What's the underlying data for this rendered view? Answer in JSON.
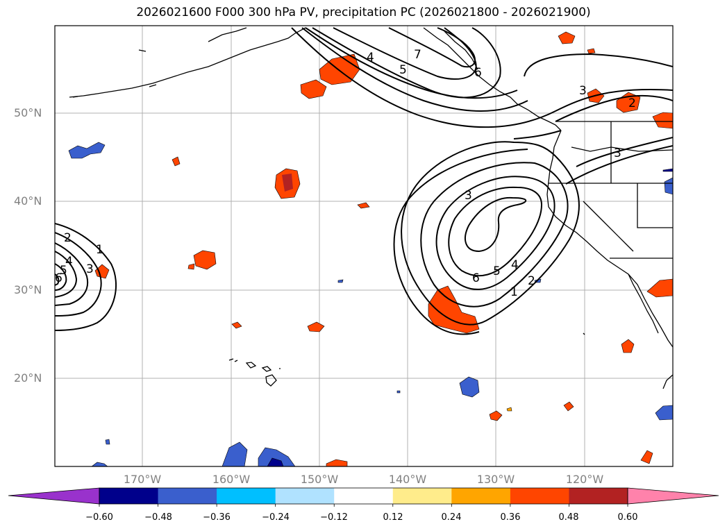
{
  "title": "2026021600 F000 300 hPa PV, precipitation PC (2026021800 - 2026021900)",
  "lat_labels": [
    "50°N",
    "40°N",
    "30°N",
    "20°N"
  ],
  "lon_labels": [
    "170°W",
    "160°W",
    "150°W",
    "140°W",
    "130°W",
    "120°W"
  ],
  "colorbar": {
    "tick_labels": [
      "−0.60",
      "−0.48",
      "−0.36",
      "−0.24",
      "−0.12",
      "0.12",
      "0.24",
      "0.36",
      "0.48",
      "0.60"
    ],
    "colors": [
      "#9932cc",
      "#00008b",
      "#3a5fcd",
      "#00bfff",
      "#b0e2ff",
      "#ffffff",
      "#ffec8b",
      "#ffa500",
      "#ff4500",
      "#b22222",
      "#ff82ab"
    ]
  },
  "contour_labels": {
    "north_4": "4",
    "north_5": "5",
    "north_7": "7",
    "north_6": "6",
    "ne_3": "3",
    "ne_2": "2",
    "east_3": "3",
    "trough_3": "3",
    "trough_4": "4",
    "trough_5": "5",
    "trough_6": "6",
    "trough_2": "2",
    "trough_1": "1",
    "west_2": "2",
    "west_1": "1",
    "west_4": "4",
    "west_3": "3",
    "west_5": "5",
    "west_6": "6"
  }
}
